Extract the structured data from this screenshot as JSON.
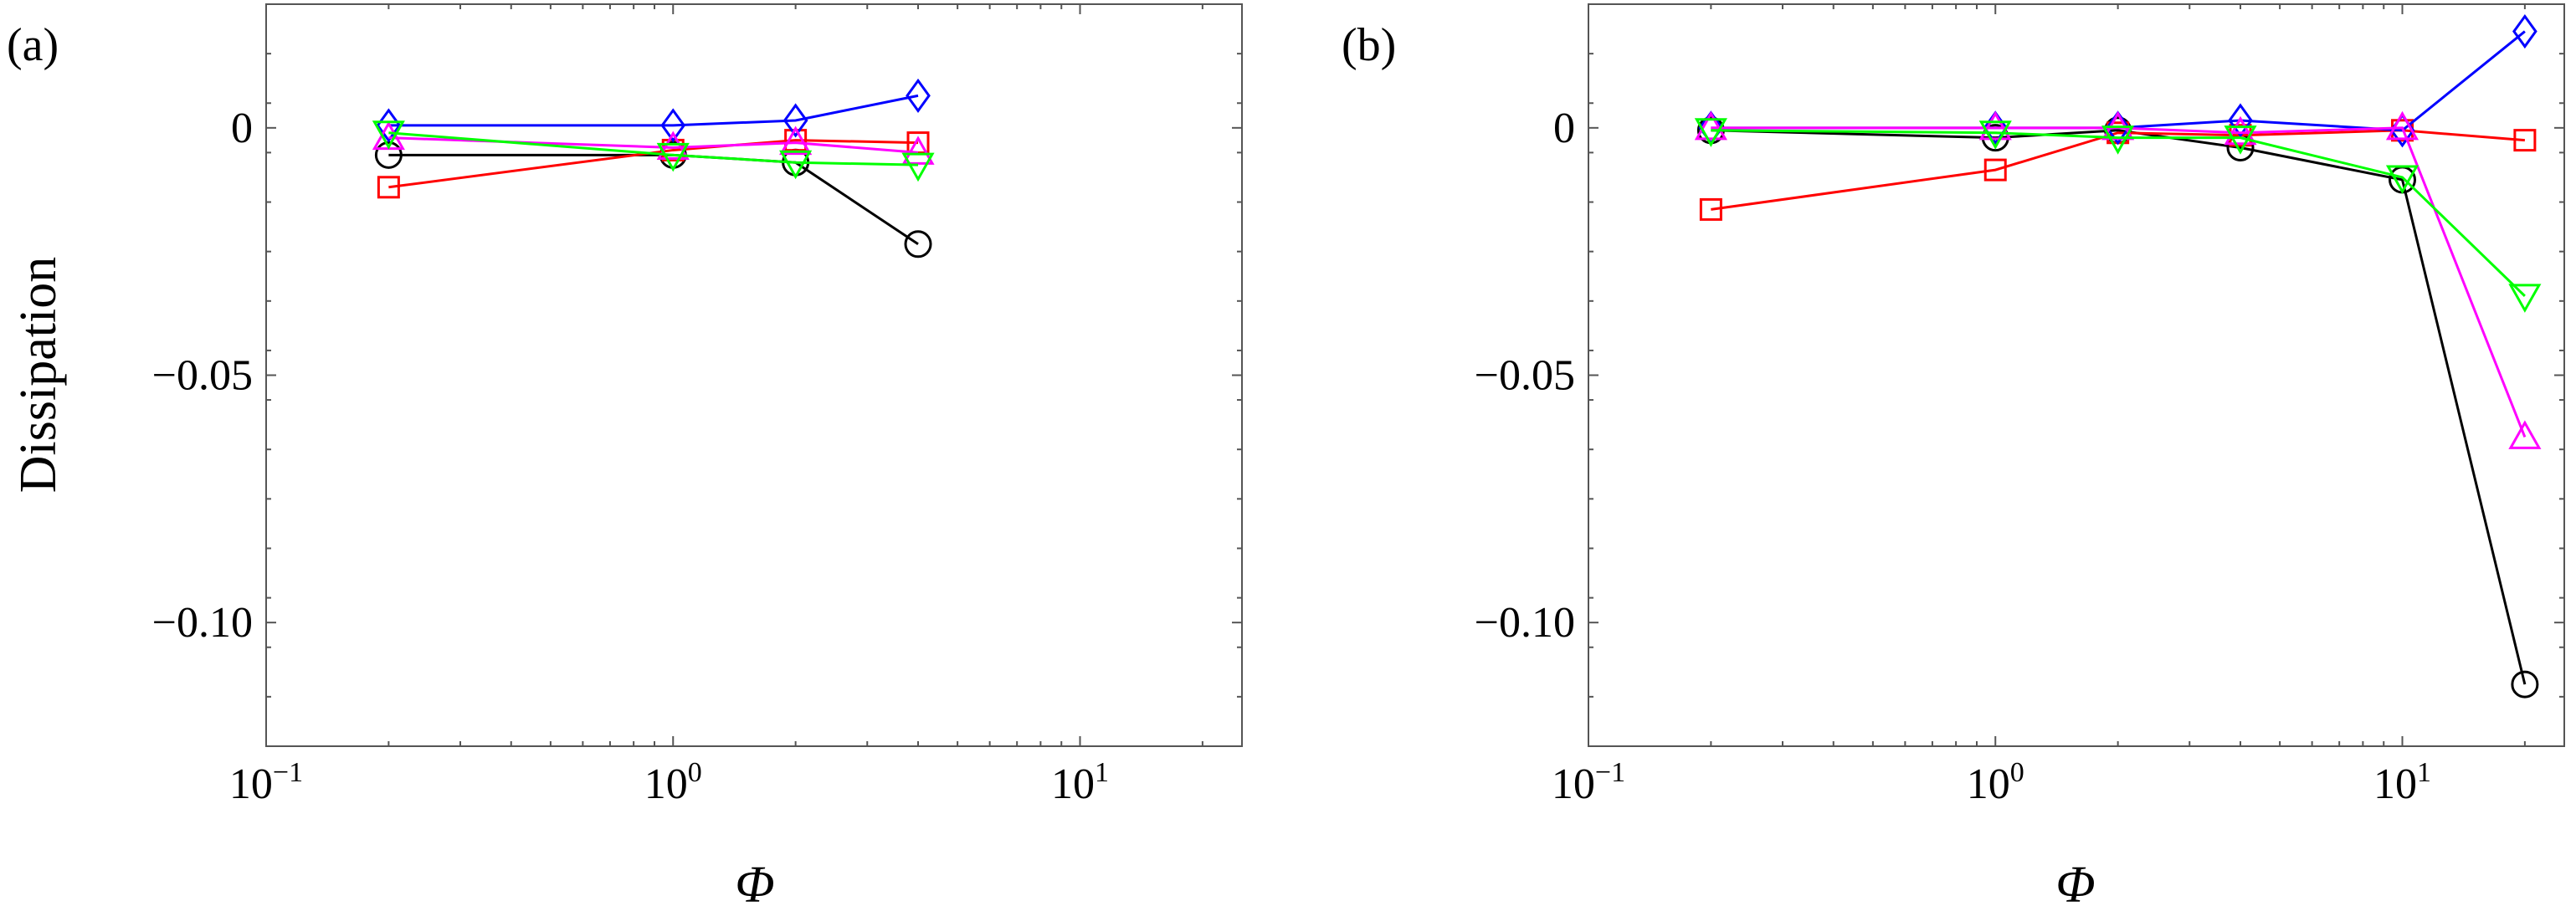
{
  "chart_data": [
    {
      "type": "line",
      "panel_label": "(a)",
      "xlabel": "Φ",
      "ylabel": "Dissipation",
      "xscale": "log",
      "xlim": [
        0.1,
        25
      ],
      "ylim": [
        -0.125,
        0.025
      ],
      "x_ticks": [
        {
          "base": "10",
          "exp": "−1",
          "value": 0.1
        },
        {
          "base": "10",
          "exp": "0",
          "value": 1
        },
        {
          "base": "10",
          "exp": "1",
          "value": 10
        }
      ],
      "y_ticks": [
        {
          "label": "0",
          "value": 0
        },
        {
          "label": "−0.05",
          "value": -0.05
        },
        {
          "label": "−0.10",
          "value": -0.1
        }
      ],
      "series": [
        {
          "marker": "circle",
          "color": "#000000",
          "x": [
            0.2,
            1,
            2,
            4
          ],
          "y": [
            -0.0055,
            -0.0055,
            -0.007,
            -0.0235
          ]
        },
        {
          "marker": "square",
          "color": "#ff0000",
          "x": [
            0.2,
            1,
            2,
            4
          ],
          "y": [
            -0.012,
            -0.0045,
            -0.0025,
            -0.003
          ]
        },
        {
          "marker": "diamond",
          "color": "#0000ff",
          "x": [
            0.2,
            1,
            2,
            4
          ],
          "y": [
            0.0005,
            0.0005,
            0.0015,
            0.0065
          ]
        },
        {
          "marker": "triangle-up",
          "color": "#ff00ff",
          "x": [
            0.2,
            1,
            2,
            4
          ],
          "y": [
            -0.002,
            -0.004,
            -0.003,
            -0.005
          ]
        },
        {
          "marker": "triangle-down",
          "color": "#00ff00",
          "x": [
            0.2,
            1,
            2,
            4
          ],
          "y": [
            -0.001,
            -0.0055,
            -0.007,
            -0.0075
          ]
        }
      ]
    },
    {
      "type": "line",
      "panel_label": "(b)",
      "xlabel": "Φ",
      "ylabel": "",
      "xscale": "log",
      "xlim": [
        0.1,
        25
      ],
      "ylim": [
        -0.125,
        0.025
      ],
      "x_ticks": [
        {
          "base": "10",
          "exp": "−1",
          "value": 0.1
        },
        {
          "base": "10",
          "exp": "0",
          "value": 1
        },
        {
          "base": "10",
          "exp": "1",
          "value": 10
        }
      ],
      "y_ticks": [
        {
          "label": "0",
          "value": 0
        },
        {
          "label": "−0.05",
          "value": -0.05
        },
        {
          "label": "−0.10",
          "value": -0.1
        }
      ],
      "series": [
        {
          "marker": "circle",
          "color": "#000000",
          "x": [
            0.2,
            1,
            2,
            4,
            10,
            20
          ],
          "y": [
            -0.0005,
            -0.002,
            -0.0005,
            -0.004,
            -0.0105,
            -0.1125
          ]
        },
        {
          "marker": "square",
          "color": "#ff0000",
          "x": [
            0.2,
            1,
            2,
            4,
            10,
            20
          ],
          "y": [
            -0.0165,
            -0.0085,
            -0.001,
            -0.0015,
            -0.0005,
            -0.0025
          ]
        },
        {
          "marker": "diamond",
          "color": "#0000ff",
          "x": [
            0.2,
            1,
            2,
            4,
            10,
            20
          ],
          "y": [
            0.0,
            0.0,
            0.0,
            0.0015,
            -0.0005,
            0.0195
          ]
        },
        {
          "marker": "triangle-up",
          "color": "#ff00ff",
          "x": [
            0.2,
            1,
            2,
            4,
            10,
            20
          ],
          "y": [
            0.0,
            0.0,
            0.0,
            -0.001,
            0.0,
            -0.0625
          ]
        },
        {
          "marker": "triangle-down",
          "color": "#00ff00",
          "x": [
            0.2,
            1,
            2,
            4,
            10,
            20
          ],
          "y": [
            -0.0005,
            -0.001,
            -0.002,
            -0.002,
            -0.01,
            -0.034
          ]
        }
      ]
    }
  ]
}
